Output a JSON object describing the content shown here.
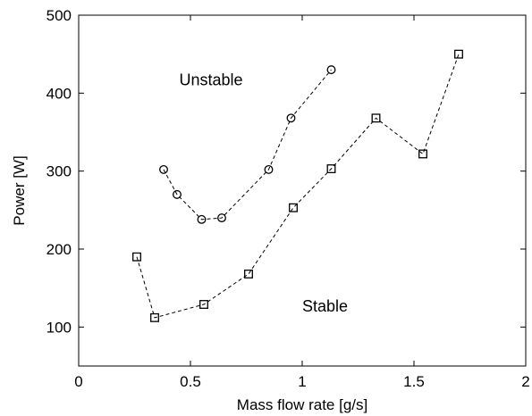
{
  "chart_data": {
    "type": "line",
    "xlabel": "Mass flow rate [g/s]",
    "ylabel": "Power [W]",
    "xlim": [
      0,
      2
    ],
    "ylim": [
      50,
      500
    ],
    "xticks": [
      0,
      0.5,
      1,
      1.5,
      2
    ],
    "yticks": [
      100,
      200,
      300,
      400,
      500
    ],
    "xtick_labels": [
      "0",
      "0.5",
      "1",
      "1.5",
      "2"
    ],
    "ytick_labels": [
      "100",
      "200",
      "300",
      "400",
      "500"
    ],
    "grid": false,
    "series": [
      {
        "marker": "circle",
        "line_style": "dashed",
        "color": "#000000",
        "x": [
          0.38,
          0.44,
          0.55,
          0.64,
          0.85,
          0.95,
          1.13
        ],
        "y": [
          302,
          270,
          238,
          240,
          302,
          368,
          430
        ]
      },
      {
        "marker": "square",
        "line_style": "dashed",
        "color": "#000000",
        "x": [
          0.26,
          0.34,
          0.56,
          0.76,
          0.96,
          1.13,
          1.33,
          1.54,
          1.7
        ],
        "y": [
          190,
          112,
          129,
          168,
          253,
          303,
          368,
          322,
          450
        ]
      }
    ],
    "annotations": [
      {
        "text": "Unstable",
        "x": 0.45,
        "y": 410
      },
      {
        "text": "Stable",
        "x": 1.0,
        "y": 120
      }
    ]
  }
}
